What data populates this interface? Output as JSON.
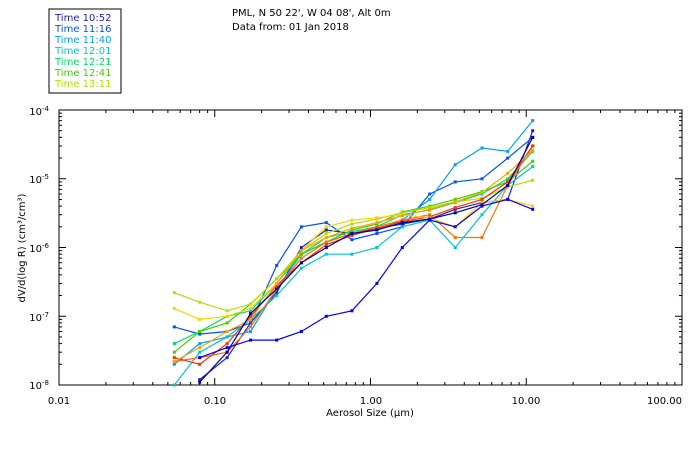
{
  "header": {
    "location": "PML, N 50 22', W 04 08', Alt 0m",
    "data_from": "Data from: 01 Jan 2018"
  },
  "chart_data": {
    "type": "line",
    "title": "PML, N 50 22', W 04 08', Alt 0m",
    "xlabel": "Aerosol Size (μm)",
    "ylabel": "dV/d(log R) (cm³/cm³)",
    "xscale": "log",
    "yscale": "log",
    "xlim": [
      0.01,
      100.0
    ],
    "ylim": [
      1e-08,
      0.0001
    ],
    "x_tick_labels": [
      "0.01",
      "0.10",
      "1.00",
      "10.00",
      "100.00"
    ],
    "y_tick_labels": [
      {
        "base": "10",
        "exp": "-8"
      },
      {
        "base": "10",
        "exp": "-7"
      },
      {
        "base": "10",
        "exp": "-6"
      },
      {
        "base": "10",
        "exp": "-5"
      },
      {
        "base": "10",
        "exp": "-4"
      }
    ],
    "legend_position": "top-left",
    "x": [
      0.055,
      0.08,
      0.12,
      0.17,
      0.25,
      0.36,
      0.52,
      0.76,
      1.1,
      1.6,
      2.4,
      3.5,
      5.2,
      7.6,
      11.0
    ],
    "series": [
      {
        "name": "Time 10:52",
        "color": "#2020c0",
        "values": [
          null,
          1.2e-08,
          2.5e-08,
          8e-08,
          2.2e-07,
          1e-06,
          1.8e-06,
          1.6e-06,
          1.9e-06,
          2.2e-06,
          2.6e-06,
          3.6e-06,
          4.5e-06,
          5e-06,
          5e-05
        ]
      },
      {
        "name": "Time 11:16",
        "color": "#0050ff",
        "values": [
          7e-08,
          5.5e-08,
          6e-08,
          8e-08,
          5.5e-07,
          2e-06,
          2.3e-06,
          1.3e-06,
          1.6e-06,
          2e-06,
          6e-06,
          9e-06,
          1e-05,
          2e-05,
          4e-05
        ]
      },
      {
        "name": "Time 11:40",
        "color": "#00a0ff",
        "values": [
          2e-08,
          4e-08,
          5e-08,
          6e-08,
          2.5e-07,
          8e-07,
          1.2e-06,
          1.6e-06,
          1.8e-06,
          2.5e-06,
          5e-06,
          1.6e-05,
          2.8e-05,
          2.5e-05,
          7e-05
        ]
      },
      {
        "name": "Time 12:01",
        "color": "#00c8c8",
        "values": [
          1e-08,
          3e-08,
          5e-08,
          9e-08,
          2e-07,
          5e-07,
          8e-07,
          8e-07,
          1e-06,
          2e-06,
          2.5e-06,
          1e-06,
          3e-06,
          8e-06,
          1.5e-05
        ]
      },
      {
        "name": "Time 12:21",
        "color": "#00e060",
        "values": [
          4e-08,
          6e-08,
          1e-07,
          1.2e-07,
          3e-07,
          8e-07,
          1.4e-06,
          1.7e-06,
          2e-06,
          3e-06,
          3.5e-06,
          4.5e-06,
          6e-06,
          1e-05,
          2.5e-05
        ]
      },
      {
        "name": "Time 12:41",
        "color": "#40d000",
        "values": [
          3e-08,
          6e-08,
          8e-08,
          1.5e-07,
          3.5e-07,
          8e-07,
          1.2e-06,
          1.8e-06,
          2.2e-06,
          3.3e-06,
          4e-06,
          5e-06,
          6.5e-06,
          9e-06,
          1.8e-05
        ]
      },
      {
        "name": "Time 13:11",
        "color": "#b0e000",
        "values": [
          2.2e-07,
          1.6e-07,
          1.2e-07,
          1.5e-07,
          3.5e-07,
          9e-07,
          1.6e-06,
          2.2e-06,
          2.6e-06,
          3.2e-06,
          3.8e-06,
          4.6e-06,
          5.2e-06,
          7.6e-06,
          9.5e-06
        ]
      },
      {
        "name": "",
        "color": "#ff7000",
        "values": [
          2.2e-08,
          2.5e-08,
          3e-08,
          7e-08,
          2.5e-07,
          7e-07,
          1.2e-06,
          1.6e-06,
          2e-06,
          2.5e-06,
          3e-06,
          1.4e-06,
          1.4e-06,
          8e-06,
          3e-05
        ]
      },
      {
        "name": "",
        "color": "#ff3000",
        "values": [
          2.5e-08,
          2e-08,
          4e-08,
          1e-07,
          2.8e-07,
          6e-07,
          1.1e-06,
          1.5e-06,
          1.9e-06,
          2.4e-06,
          2.8e-06,
          3.8e-06,
          5e-06,
          9e-06,
          3e-05
        ]
      },
      {
        "name": "",
        "color": "#ffd000",
        "values": [
          1.3e-07,
          9e-08,
          1e-07,
          1.3e-07,
          3e-07,
          9e-07,
          2e-06,
          2.5e-06,
          2.7e-06,
          3e-06,
          2.7e-06,
          2e-06,
          4.5e-06,
          5e-06,
          4e-06
        ]
      },
      {
        "name": "",
        "color": "#ffa000",
        "values": [
          2.2e-08,
          3.5e-08,
          6e-08,
          9e-08,
          3e-07,
          9e-07,
          1.4e-06,
          1.9e-06,
          2.3e-06,
          2.9e-06,
          3.6e-06,
          4.6e-06,
          6.3e-06,
          1.2e-05,
          2.6e-05
        ]
      },
      {
        "name": "",
        "color": "#0000a0",
        "values": [
          null,
          1.1e-08,
          3e-08,
          1.1e-07,
          2.5e-07,
          6e-07,
          1e-06,
          1.6e-06,
          1.8e-06,
          2.3e-06,
          2.6e-06,
          3.2e-06,
          4.2e-06,
          8e-06,
          4e-05
        ]
      },
      {
        "name": "",
        "color": "#0000ff",
        "values": [
          null,
          2.5e-08,
          3.5e-08,
          4.5e-08,
          4.5e-08,
          6e-08,
          1e-07,
          1.2e-07,
          3e-07,
          1e-06,
          2.5e-06,
          2e-06,
          4e-06,
          5e-06,
          3.6e-06
        ]
      }
    ]
  }
}
